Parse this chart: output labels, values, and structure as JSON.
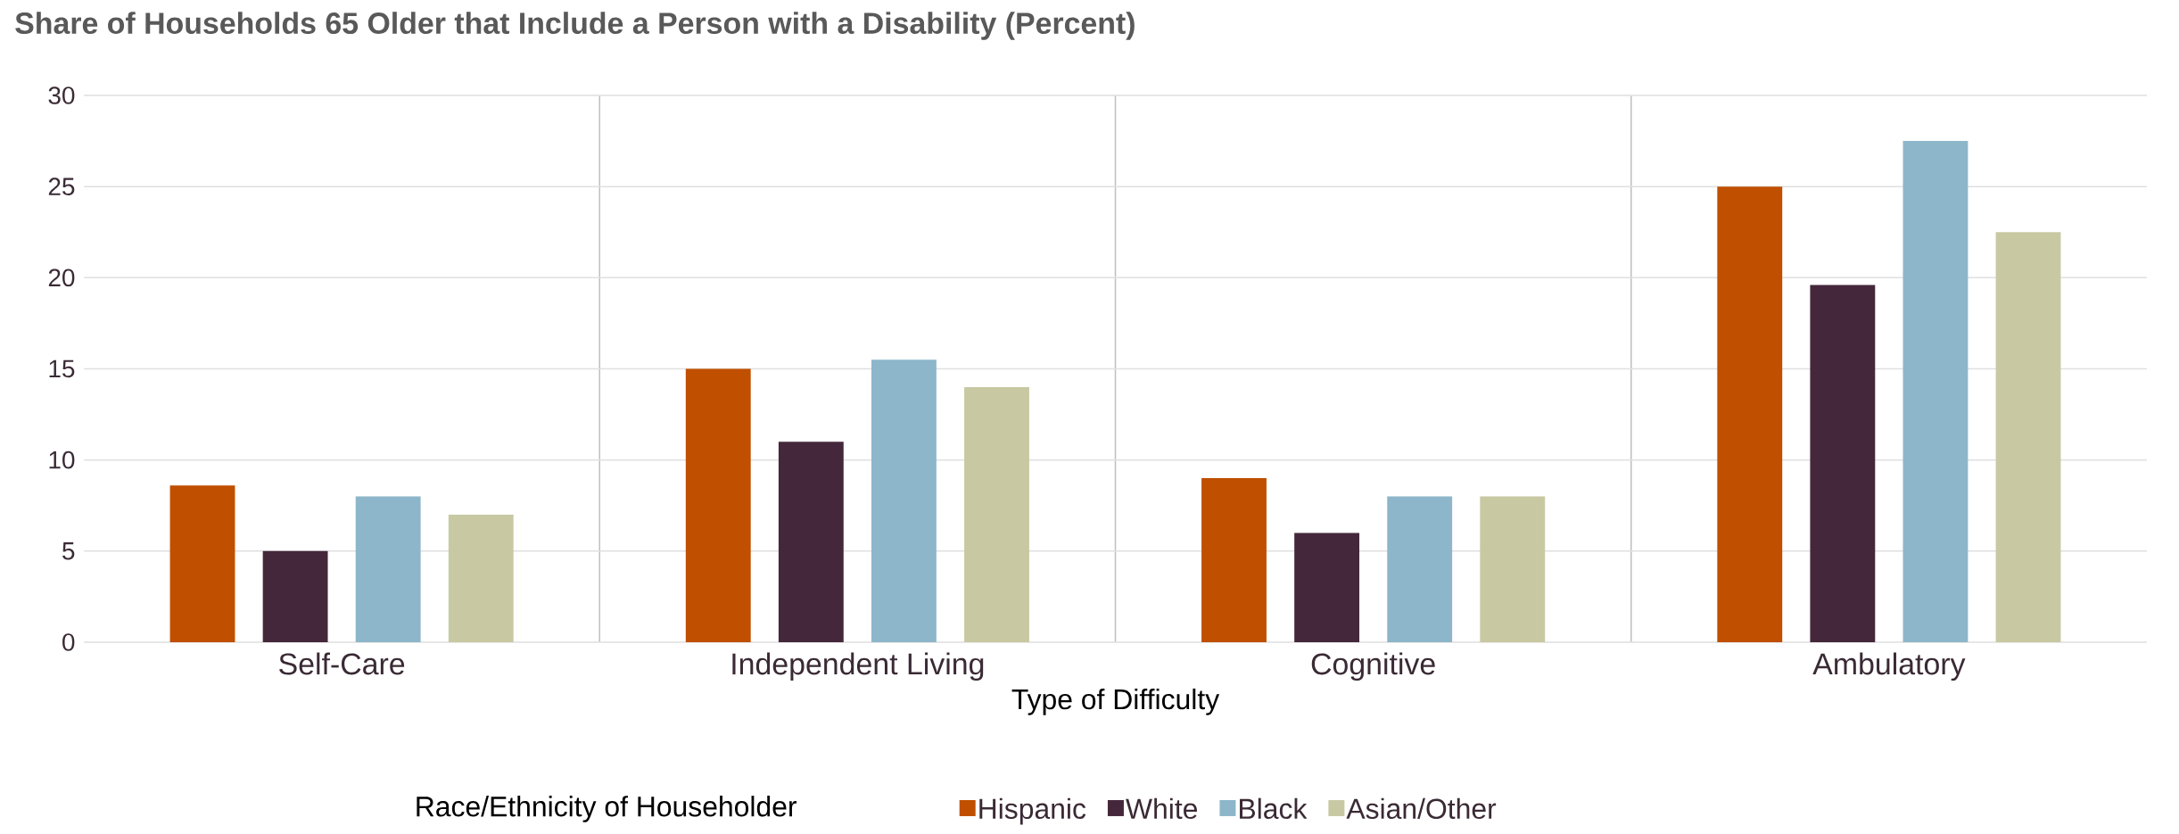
{
  "chart_data": {
    "type": "bar",
    "title": "Share of Households 65 Older that Include a Person with a Disability (Percent)",
    "xlabel": "Type of Difficulty",
    "legend_title": "Race/Ethnicity of Householder",
    "categories": [
      "Self-Care",
      "Independent Living",
      "Cognitive",
      "Ambulatory"
    ],
    "series": [
      {
        "name": "Hispanic",
        "color": "#c04f00",
        "values": [
          8.6,
          15,
          9,
          25
        ]
      },
      {
        "name": "White",
        "color": "#45273b",
        "values": [
          5,
          11,
          6,
          19.6
        ]
      },
      {
        "name": "Black",
        "color": "#8db6ca",
        "values": [
          8,
          15.5,
          8,
          27.5
        ]
      },
      {
        "name": "Asian/Other",
        "color": "#c8c9a3",
        "values": [
          7,
          14,
          8,
          22.5
        ]
      }
    ],
    "ylim": [
      0,
      30
    ],
    "yticks": [
      0,
      5,
      10,
      15,
      20,
      25,
      30
    ],
    "grid": true,
    "legend": "bottom"
  }
}
